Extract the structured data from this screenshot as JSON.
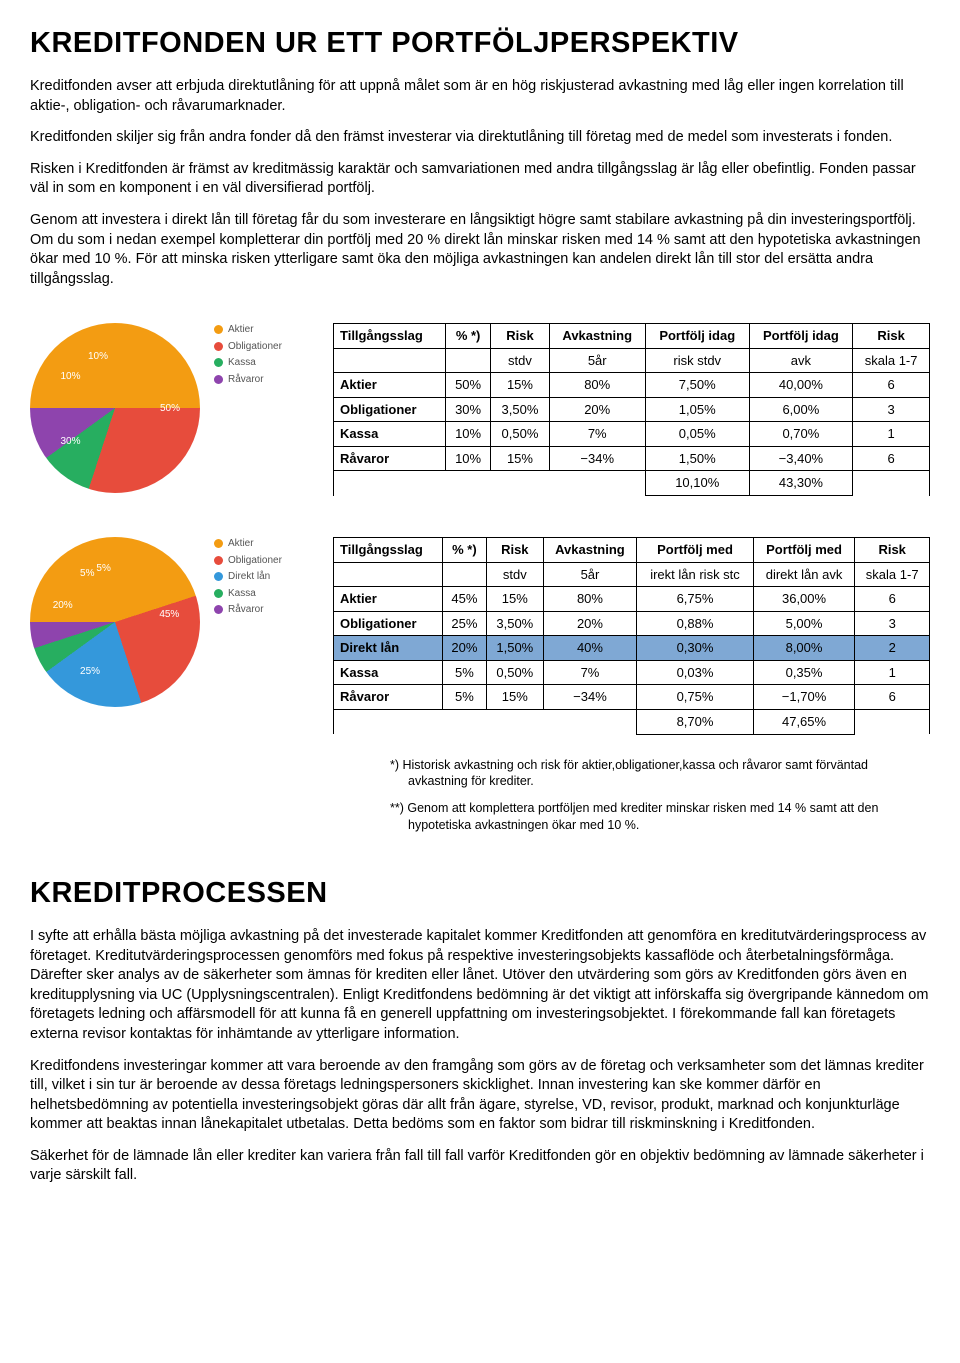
{
  "section1": {
    "title": "KREDITFONDEN UR ETT PORTFÖLJPERSPEKTIV",
    "p1": "Kreditfonden avser att erbjuda direktutlåning för att uppnå målet som är en hög riskjusterad avkastning med låg eller ingen korrelation till aktie-, obligation- och råvarumarknader.",
    "p2": "Kreditfonden skiljer sig från andra fonder då den främst investerar via direktutlåning till företag med de medel som investerats i fonden.",
    "p3": "Risken i Kreditfonden är främst av kreditmässig karaktär och samvariationen med andra tillgångsslag är låg eller obefintlig. Fonden passar väl in som en komponent i en väl diversifierad portfölj.",
    "p4": "Genom att investera i direkt lån till företag får du som investerare en långsiktigt högre samt stabilare avkastning på din investeringsportfölj. Om du som i nedan exempel kompletterar din portfölj med 20 % direkt lån minskar risken med 14 % samt att den hypotetiska avkastningen ökar med 10 %. För att minska risken ytterligare samt öka den möjliga avkastningen kan andelen direkt lån till stor del ersätta andra tillgångsslag."
  },
  "colors": {
    "aktier": "#f39c12",
    "obligationer": "#e74c3c",
    "kassa": "#27ae60",
    "ravaror": "#8e44ad",
    "direkt_lan": "#3498db"
  },
  "chart1": {
    "type": "pie",
    "legend": [
      {
        "label": "Aktier",
        "color": "#f39c12"
      },
      {
        "label": "Obligationer",
        "color": "#e74c3c"
      },
      {
        "label": "Kassa",
        "color": "#27ae60"
      },
      {
        "label": "Råvaror",
        "color": "#8e44ad"
      }
    ],
    "slices": [
      {
        "label": "50%",
        "value": 50,
        "color": "#f39c12"
      },
      {
        "label": "30%",
        "value": 30,
        "color": "#e74c3c"
      },
      {
        "label": "10%",
        "value": 10,
        "color": "#27ae60"
      },
      {
        "label": "10%",
        "value": 10,
        "color": "#8e44ad"
      }
    ]
  },
  "chart2": {
    "type": "pie",
    "legend": [
      {
        "label": "Aktier",
        "color": "#f39c12"
      },
      {
        "label": "Obligationer",
        "color": "#e74c3c"
      },
      {
        "label": "Direkt lån",
        "color": "#3498db"
      },
      {
        "label": "Kassa",
        "color": "#27ae60"
      },
      {
        "label": "Råvaror",
        "color": "#8e44ad"
      }
    ],
    "slices": [
      {
        "label": "45%",
        "value": 45,
        "color": "#f39c12"
      },
      {
        "label": "25%",
        "value": 25,
        "color": "#e74c3c"
      },
      {
        "label": "20%",
        "value": 20,
        "color": "#3498db"
      },
      {
        "label": "5%",
        "value": 5,
        "color": "#27ae60"
      },
      {
        "label": "5%",
        "value": 5,
        "color": "#8e44ad"
      }
    ]
  },
  "table1": {
    "headers": [
      "Tillgångsslag",
      "% *)",
      "Risk",
      "Avkastning",
      "Portfölj idag",
      "Portfölj idag",
      "Risk"
    ],
    "sub": [
      "",
      "",
      "stdv",
      "5år",
      "risk stdv",
      "avk",
      "skala 1-7"
    ],
    "rows": [
      [
        "Aktier",
        "50%",
        "15%",
        "80%",
        "7,50%",
        "40,00%",
        "6"
      ],
      [
        "Obligationer",
        "30%",
        "3,50%",
        "20%",
        "1,05%",
        "6,00%",
        "3"
      ],
      [
        "Kassa",
        "10%",
        "0,50%",
        "7%",
        "0,05%",
        "0,70%",
        "1"
      ],
      [
        "Råvaror",
        "10%",
        "15%",
        "−34%",
        "1,50%",
        "−3,40%",
        "6"
      ]
    ],
    "total": [
      "",
      "",
      "",
      "",
      "10,10%",
      "43,30%",
      ""
    ]
  },
  "table2": {
    "headers": [
      "Tillgångsslag",
      "% *)",
      "Risk",
      "Avkastning",
      "Portfölj med",
      "Portfölj med",
      "Risk"
    ],
    "sub": [
      "",
      "",
      "stdv",
      "5år",
      "irekt lån risk stc",
      "direkt lån avk",
      "skala 1-7"
    ],
    "rows": [
      [
        "Aktier",
        "45%",
        "15%",
        "80%",
        "6,75%",
        "36,00%",
        "6"
      ],
      [
        "Obligationer",
        "25%",
        "3,50%",
        "20%",
        "0,88%",
        "5,00%",
        "3"
      ],
      [
        "Direkt lån",
        "20%",
        "1,50%",
        "40%",
        "0,30%",
        "8,00%",
        "2"
      ],
      [
        "Kassa",
        "5%",
        "0,50%",
        "7%",
        "0,03%",
        "0,35%",
        "1"
      ],
      [
        "Råvaror",
        "5%",
        "15%",
        "−34%",
        "0,75%",
        "−1,70%",
        "6"
      ]
    ],
    "highlight_row": 2,
    "total": [
      "",
      "",
      "",
      "",
      "8,70%",
      "47,65%",
      ""
    ]
  },
  "footnotes": {
    "f1": "*)   Historisk avkastning och risk för aktier,obligationer,kassa och råvaror samt förväntad avkastning för krediter.",
    "f2": "**) Genom att komplettera portföljen med krediter minskar risken med 14 % samt att den hypotetiska avkastningen ökar med 10 %."
  },
  "section2": {
    "title": "KREDITPROCESSEN",
    "p1": "I syfte att erhålla bästa möjliga avkastning på det investerade kapitalet kommer Kreditfonden att genomföra en kreditutvärderingsprocess av företaget. Kreditutvärderingsprocessen genomförs med fokus på respektive investeringsobjekts kassaflöde och återbetalningsförmåga. Därefter sker analys av de säkerheter som ämnas för krediten eller lånet. Utöver den utvärdering som görs av Kreditfonden görs även en kreditupplysning via UC (Upplysningscentralen). Enligt Kreditfondens bedömning är det viktigt att införskaffa sig övergripande kännedom om företagets ledning och affärsmodell för att kunna få en generell uppfattning om investeringsobjektet. I förekommande fall kan företagets externa revisor kontaktas för inhämtande av ytterligare information.",
    "p2": "Kreditfondens investeringar kommer att vara beroende av den framgång som görs av de företag och verksamheter som det lämnas krediter till, vilket i sin tur är beroende av dessa företags ledningspersoners skicklighet. Innan investering kan ske kommer därför en helhetsbedömning av potentiella investeringsobjekt göras där allt från ägare, styrelse, VD, revisor, produkt, marknad och konjunkturläge kommer att beaktas innan lånekapitalet utbetalas. Detta bedöms som en faktor som bidrar till riskminskning i Kreditfonden.",
    "p3": "Säkerhet för de lämnade lån eller krediter kan variera från fall till fall varför Kreditfonden gör en objektiv bedömning av lämnade säkerheter i varje särskilt fall."
  }
}
